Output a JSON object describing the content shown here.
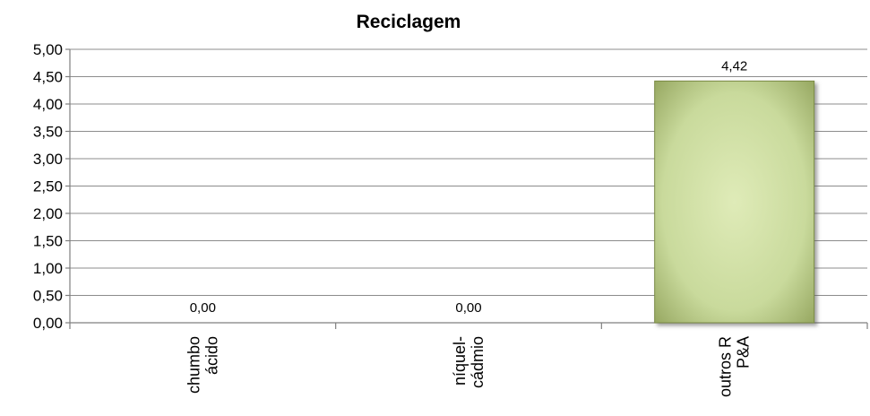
{
  "chart_data": {
    "type": "bar",
    "title": "Reciclagem",
    "categories": [
      [
        "chumbo",
        "ácido"
      ],
      [
        "níquel-",
        "cádmio"
      ],
      [
        "outros R",
        "P&A"
      ]
    ],
    "values": [
      0.0,
      0.0,
      4.42
    ],
    "data_labels": [
      "0,00",
      "0,00",
      "4,42"
    ],
    "ylim": [
      0,
      5
    ],
    "yticks": [
      "0,00",
      "0,50",
      "1,00",
      "1,50",
      "2,00",
      "2,50",
      "3,00",
      "3,50",
      "4,00",
      "4,50",
      "5,00"
    ],
    "grid": true,
    "legend": "none",
    "bar_color": "#c7d99a",
    "bar_edge_color": "#7a8a45"
  }
}
